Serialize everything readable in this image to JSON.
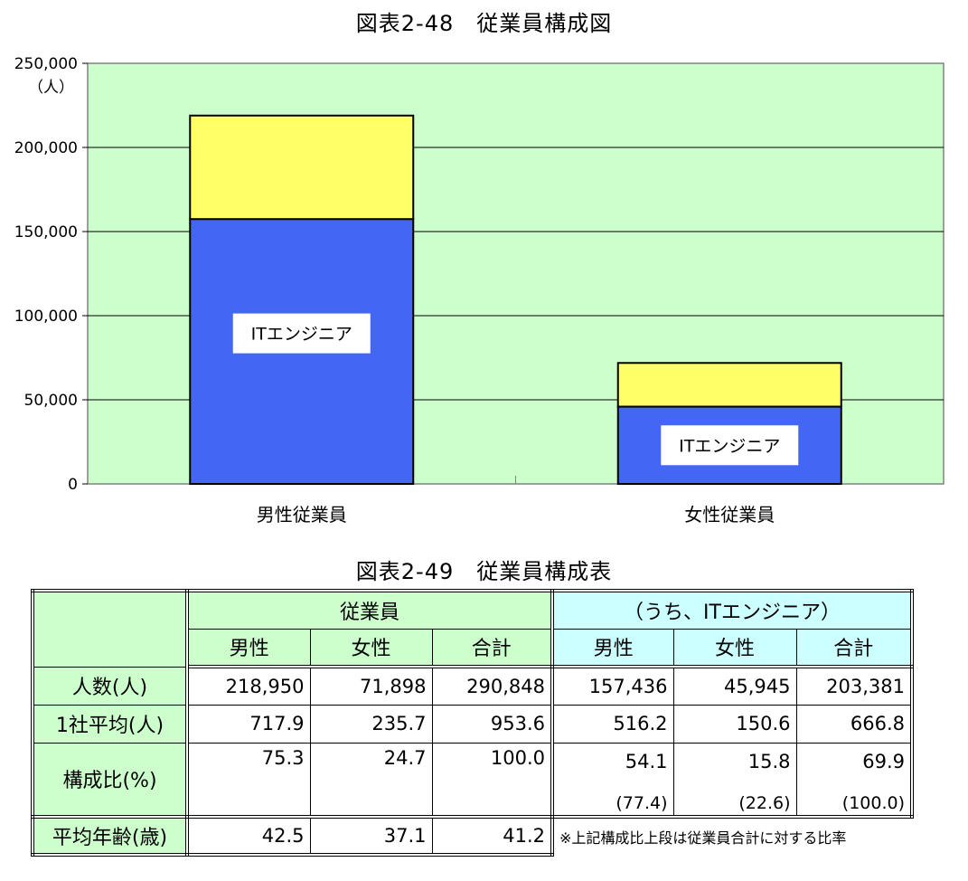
{
  "chart_data": {
    "type": "bar",
    "stacked": true,
    "title": "図表2-48　従業員構成図",
    "y_unit": "（人）",
    "ylim": [
      0,
      250000
    ],
    "yticks": [
      "0",
      "50,000",
      "100,000",
      "150,000",
      "200,000",
      "250,000"
    ],
    "categories": [
      "男性従業員",
      "女性従業員"
    ],
    "series": [
      {
        "name": "ITエンジニア",
        "values": [
          157436,
          45945
        ],
        "color": "#4466f5"
      },
      {
        "values": [
          61514,
          25953
        ],
        "color": "#ffff66"
      }
    ],
    "plot_background": "#ccffcc",
    "grid": true
  },
  "table": {
    "title": "図表2-49　従業員構成表",
    "group_employees": "従業員",
    "group_it": "（うち、ITエンジニア）",
    "col_labels": [
      "男性",
      "女性",
      "合計",
      "男性",
      "女性",
      "合計"
    ],
    "rows": [
      {
        "label": "人数(人)",
        "values": [
          "218,950",
          "71,898",
          "290,848",
          "157,436",
          "45,945",
          "203,381"
        ]
      },
      {
        "label": "1社平均(人)",
        "values": [
          "717.9",
          "235.7",
          "953.6",
          "516.2",
          "150.6",
          "666.8"
        ]
      },
      {
        "label": "構成比(%)",
        "values": [
          "75.3",
          "24.7",
          "100.0",
          "54.1",
          "15.8",
          "69.9"
        ],
        "sub": [
          "(77.4)",
          "(22.6)",
          "(100.0)"
        ]
      },
      {
        "label": "平均年齢(歳)",
        "values": [
          "42.5",
          "37.1",
          "41.2"
        ]
      }
    ],
    "note": "※上記構成比上段は従業員合計に対する比率"
  }
}
